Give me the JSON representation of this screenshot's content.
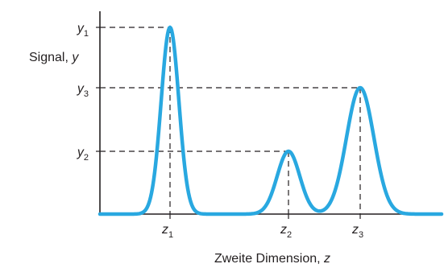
{
  "chart_data": {
    "type": "line",
    "ylabel": {
      "text": "Signal, ",
      "var": "y"
    },
    "xlabel": {
      "text": "Zweite Dimension, ",
      "var": "z"
    },
    "curve_color": "#29a8e0",
    "axis_color": "#231f20",
    "peaks": [
      {
        "x_label": "z",
        "x_sub": "1",
        "y_label": "y",
        "y_sub": "1",
        "x": 211,
        "height": 232,
        "width": 11
      },
      {
        "x_label": "z",
        "x_sub": "2",
        "y_label": "y",
        "y_sub": "2",
        "x": 358,
        "height": 78,
        "width": 14
      },
      {
        "x_label": "z",
        "x_sub": "3",
        "y_label": "y",
        "y_sub": "3",
        "x": 447,
        "height": 157,
        "width": 17
      }
    ],
    "baseline": 266,
    "xlim": [
      124,
      548
    ],
    "ylim_top": 14
  }
}
